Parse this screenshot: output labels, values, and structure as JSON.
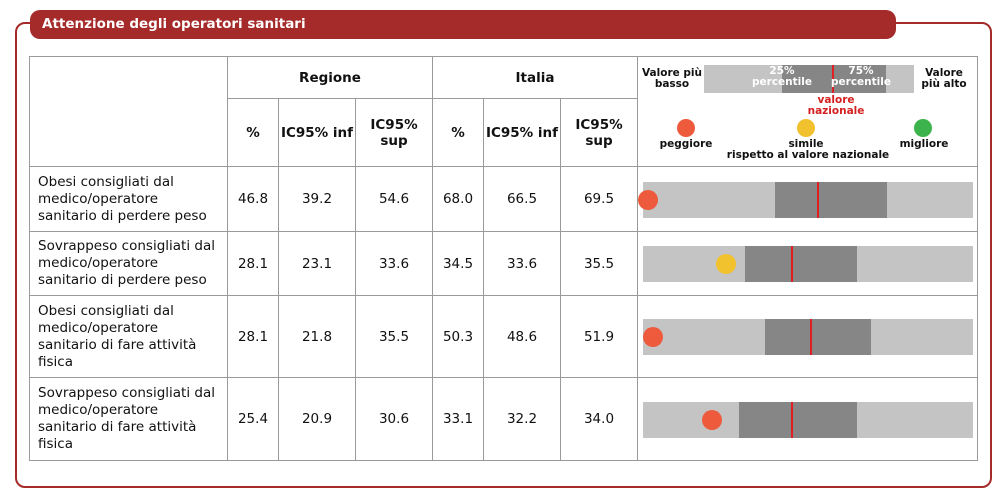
{
  "title": "Attenzione degli operatori sanitari",
  "headers": {
    "regione": "Regione",
    "italia": "Italia",
    "pct": "%",
    "ic_inf": "IC95% inf",
    "ic_sup": "IC95% sup"
  },
  "legend": {
    "valore_basso": "Valore più basso",
    "valore_alto": "Valore più alto",
    "p25": "25% percentile",
    "p75": "75% percentile",
    "valore_nazionale": "valore nazionale",
    "peggiore": "peggiore",
    "simile": "simile",
    "rispetto": "rispetto al valore nazionale",
    "migliore": "migliore",
    "colors": {
      "peggiore": "#ee5a3c",
      "simile": "#f2c12e",
      "migliore": "#3cb44b",
      "national_line": "#e02020"
    }
  },
  "rows": [
    {
      "label": "Obesi consigliati dal medico/operatore sanitario di perdere peso",
      "reg_pct": "46.8",
      "reg_inf": "39.2",
      "reg_sup": "54.6",
      "ita_pct": "68.0",
      "ita_inf": "66.5",
      "ita_sup": "69.5",
      "bar": {
        "p25": 0.4,
        "p75": 0.74,
        "national": 0.53,
        "region": 0.0,
        "status": "peggiore"
      }
    },
    {
      "label": "Sovrappeso consigliati dal medico/operatore sanitario di perdere peso",
      "reg_pct": "28.1",
      "reg_inf": "23.1",
      "reg_sup": "33.6",
      "ita_pct": "34.5",
      "ita_inf": "33.6",
      "ita_sup": "35.5",
      "bar": {
        "p25": 0.31,
        "p75": 0.65,
        "national": 0.45,
        "region": 0.25,
        "status": "simile"
      }
    },
    {
      "label": "Obesi consigliati dal medico/operatore sanitario di fare attività fisica",
      "reg_pct": "28.1",
      "reg_inf": "21.8",
      "reg_sup": "35.5",
      "ita_pct": "50.3",
      "ita_inf": "48.6",
      "ita_sup": "51.9",
      "bar": {
        "p25": 0.37,
        "p75": 0.69,
        "national": 0.51,
        "region": 0.03,
        "status": "peggiore"
      }
    },
    {
      "label": "Sovrappeso consigliati dal medico/operatore sanitario di fare attività fisica",
      "reg_pct": "25.4",
      "reg_inf": "20.9",
      "reg_sup": "30.6",
      "ita_pct": "33.1",
      "ita_inf": "32.2",
      "ita_sup": "34.0",
      "bar": {
        "p25": 0.29,
        "p75": 0.65,
        "national": 0.45,
        "region": 0.21,
        "status": "peggiore"
      }
    }
  ]
}
